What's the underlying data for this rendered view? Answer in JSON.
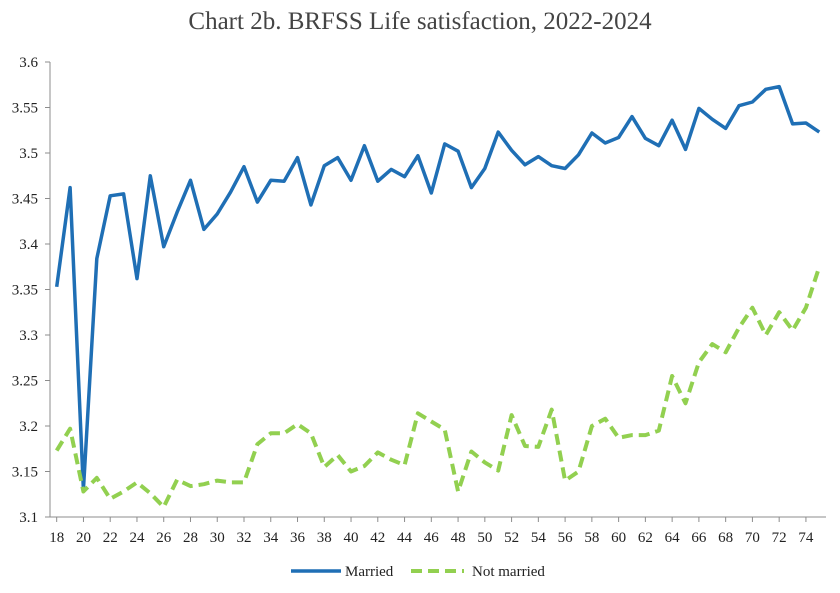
{
  "chart_data": {
    "type": "line",
    "title": "Chart 2b.  BRFSS Life satisfaction, 2022-2024",
    "xlabel": "",
    "ylabel": "",
    "xlim": [
      18,
      75
    ],
    "ylim": [
      3.1,
      3.6
    ],
    "yticks": [
      "3.1",
      "3.15",
      "3.2",
      "3.25",
      "3.3",
      "3.35",
      "3.4",
      "3.45",
      "3.5",
      "3.55",
      "3.6"
    ],
    "xticks": [
      "18",
      "20",
      "22",
      "24",
      "26",
      "28",
      "30",
      "32",
      "34",
      "36",
      "38",
      "40",
      "42",
      "44",
      "46",
      "48",
      "50",
      "52",
      "54",
      "56",
      "58",
      "60",
      "62",
      "64",
      "66",
      "68",
      "70",
      "72",
      "74"
    ],
    "grid": false,
    "legend_position": "bottom",
    "x": [
      18,
      19,
      20,
      21,
      22,
      23,
      24,
      25,
      26,
      27,
      28,
      29,
      30,
      31,
      32,
      33,
      34,
      35,
      36,
      37,
      38,
      39,
      40,
      41,
      42,
      43,
      44,
      45,
      46,
      47,
      48,
      49,
      50,
      51,
      52,
      53,
      54,
      55,
      56,
      57,
      58,
      59,
      60,
      61,
      62,
      63,
      64,
      65,
      66,
      67,
      68,
      69,
      70,
      71,
      72,
      73,
      74,
      75
    ],
    "series": [
      {
        "name": "Married",
        "color": "#1f6fb5",
        "style": "solid",
        "values": [
          3.353,
          3.462,
          3.13,
          3.384,
          3.453,
          3.455,
          3.362,
          3.475,
          3.397,
          3.435,
          3.47,
          3.416,
          3.433,
          3.457,
          3.485,
          3.446,
          3.47,
          3.469,
          3.495,
          3.443,
          3.486,
          3.495,
          3.47,
          3.508,
          3.469,
          3.482,
          3.474,
          3.497,
          3.456,
          3.51,
          3.502,
          3.462,
          3.483,
          3.523,
          3.503,
          3.487,
          3.496,
          3.486,
          3.483,
          3.498,
          3.522,
          3.511,
          3.517,
          3.54,
          3.516,
          3.508,
          3.536,
          3.504,
          3.549,
          3.537,
          3.527,
          3.552,
          3.556,
          3.57,
          3.573,
          3.532,
          3.533,
          3.523
        ]
      },
      {
        "name": "Not married",
        "color": "#92d050",
        "style": "dashed",
        "values": [
          3.173,
          3.197,
          3.128,
          3.143,
          3.12,
          3.128,
          3.138,
          3.126,
          3.111,
          3.141,
          3.134,
          3.136,
          3.14,
          3.138,
          3.138,
          3.18,
          3.192,
          3.192,
          3.202,
          3.192,
          3.155,
          3.168,
          3.15,
          3.156,
          3.171,
          3.163,
          3.157,
          3.214,
          3.205,
          3.196,
          3.128,
          3.172,
          3.16,
          3.151,
          3.212,
          3.178,
          3.177,
          3.218,
          3.14,
          3.15,
          3.2,
          3.208,
          3.187,
          3.19,
          3.19,
          3.195,
          3.255,
          3.225,
          3.27,
          3.29,
          3.281,
          3.308,
          3.33,
          3.3,
          3.325,
          3.305,
          3.33,
          3.375
        ]
      }
    ]
  }
}
